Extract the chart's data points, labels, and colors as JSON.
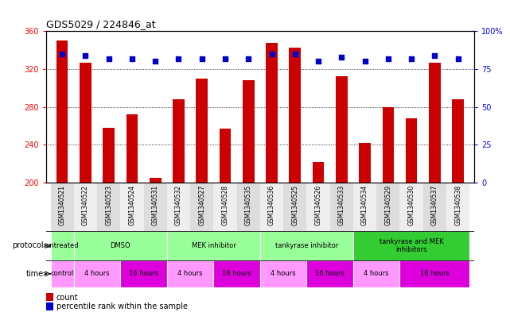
{
  "title": "GDS5029 / 224846_at",
  "samples": [
    "GSM1340521",
    "GSM1340522",
    "GSM1340523",
    "GSM1340524",
    "GSM1340531",
    "GSM1340532",
    "GSM1340527",
    "GSM1340528",
    "GSM1340535",
    "GSM1340536",
    "GSM1340525",
    "GSM1340526",
    "GSM1340533",
    "GSM1340534",
    "GSM1340529",
    "GSM1340530",
    "GSM1340537",
    "GSM1340538"
  ],
  "bar_values": [
    350,
    327,
    258,
    272,
    205,
    288,
    310,
    257,
    308,
    348,
    343,
    222,
    312,
    242,
    280,
    268,
    327,
    288
  ],
  "percentile_values": [
    85,
    84,
    82,
    82,
    80,
    82,
    82,
    82,
    82,
    85,
    85,
    80,
    83,
    80,
    82,
    82,
    84,
    82
  ],
  "bar_color": "#cc0000",
  "percentile_color": "#0000cc",
  "ylim_left": [
    200,
    360
  ],
  "ylim_right": [
    0,
    100
  ],
  "yticks_left": [
    200,
    240,
    280,
    320,
    360
  ],
  "yticks_right": [
    0,
    25,
    50,
    75,
    100
  ],
  "ytick_right_labels": [
    "0",
    "25",
    "50",
    "75",
    "100%"
  ],
  "bg_color": "#ffffff",
  "proto_groups": [
    {
      "label": "untreated",
      "start": 0,
      "end": 1,
      "color": "#99ff99"
    },
    {
      "label": "DMSO",
      "start": 1,
      "end": 5,
      "color": "#99ff99"
    },
    {
      "label": "MEK inhibitor",
      "start": 5,
      "end": 9,
      "color": "#99ff99"
    },
    {
      "label": "tankyrase inhibitor",
      "start": 9,
      "end": 13,
      "color": "#99ff99"
    },
    {
      "label": "tankyrase and MEK\ninhibitors",
      "start": 13,
      "end": 18,
      "color": "#33cc33"
    }
  ],
  "time_groups": [
    {
      "label": "control",
      "start": 0,
      "end": 1,
      "color": "#ff99ff"
    },
    {
      "label": "4 hours",
      "start": 1,
      "end": 3,
      "color": "#ff99ff"
    },
    {
      "label": "16 hours",
      "start": 3,
      "end": 5,
      "color": "#dd00dd"
    },
    {
      "label": "4 hours",
      "start": 5,
      "end": 7,
      "color": "#ff99ff"
    },
    {
      "label": "16 hours",
      "start": 7,
      "end": 9,
      "color": "#dd00dd"
    },
    {
      "label": "4 hours",
      "start": 9,
      "end": 11,
      "color": "#ff99ff"
    },
    {
      "label": "16 hours",
      "start": 11,
      "end": 13,
      "color": "#dd00dd"
    },
    {
      "label": "4 hours",
      "start": 13,
      "end": 15,
      "color": "#ff99ff"
    },
    {
      "label": "16 hours",
      "start": 15,
      "end": 18,
      "color": "#dd00dd"
    }
  ]
}
